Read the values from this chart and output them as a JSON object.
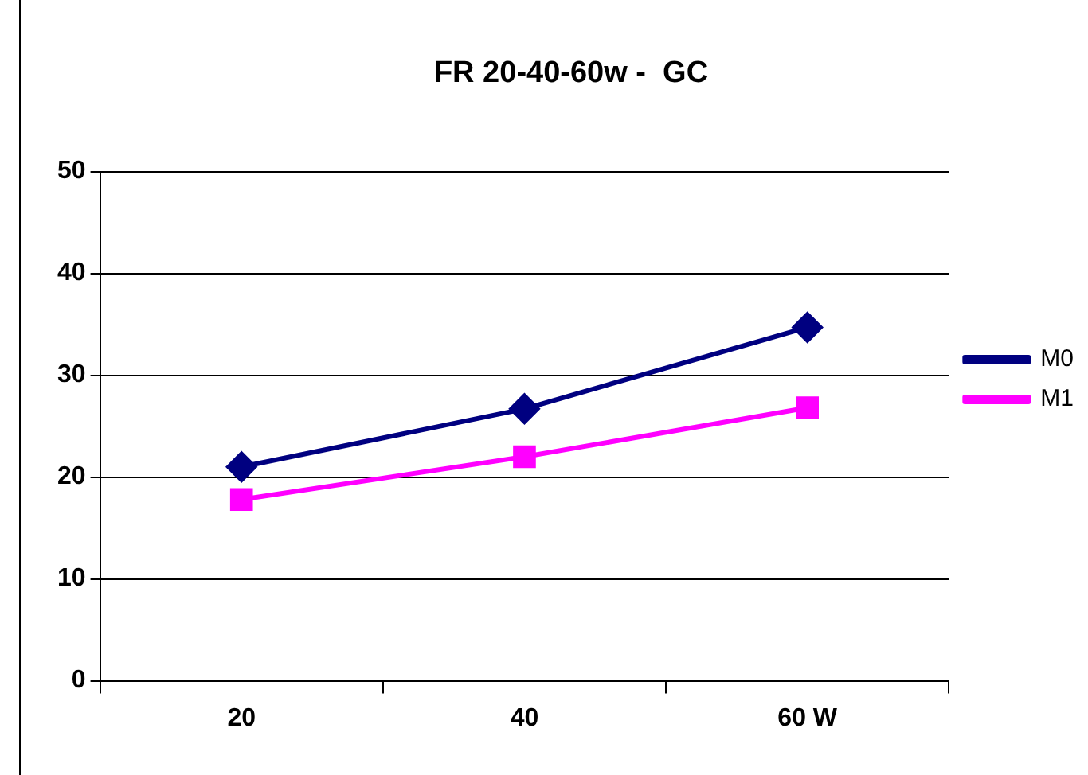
{
  "chart_data": {
    "type": "line",
    "title": "FR 20-40-60w -  GC",
    "categories": [
      "20",
      "40",
      "60 W"
    ],
    "series": [
      {
        "name": "M0",
        "color": "#000080",
        "values": [
          21,
          26.7,
          34.7
        ],
        "marker": "diamond"
      },
      {
        "name": "M1",
        "color": "#ff00ff",
        "values": [
          17.8,
          22,
          26.8
        ],
        "marker": "square"
      }
    ],
    "ylim": [
      0,
      50
    ],
    "yticks": [
      0,
      10,
      20,
      30,
      40,
      50
    ],
    "grid": "y",
    "legend": "right",
    "line_style": "solid"
  }
}
